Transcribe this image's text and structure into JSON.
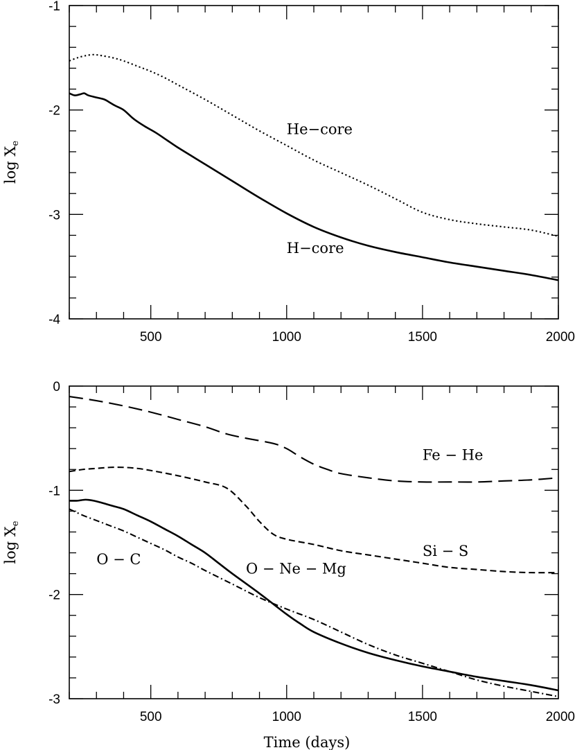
{
  "chart_data": [
    {
      "type": "line",
      "xlabel": "",
      "ylabel": "log X",
      "ylabel_sub": "e",
      "xlim": [
        200,
        2000
      ],
      "ylim": [
        -4,
        -1
      ],
      "xticks": [
        500,
        1000,
        1500,
        2000
      ],
      "yticks": [
        -4,
        -3,
        -2,
        -1
      ],
      "xtick_labels": [
        "500",
        "1000",
        "1500",
        "2000"
      ],
      "ytick_labels": [
        "-4",
        "-3",
        "-2",
        "-1"
      ],
      "x_minor_step": 100,
      "y_minor_step": 0.2,
      "grid": false,
      "annotations": [
        {
          "text": "He−core",
          "x": 1000,
          "y": -2.23
        },
        {
          "text": "H−core",
          "x": 1000,
          "y": -3.37
        }
      ],
      "series": [
        {
          "style": "dotted",
          "x": [
            200,
            230,
            260,
            290,
            320,
            360,
            400,
            450,
            500,
            550,
            600,
            700,
            800,
            900,
            1000,
            1100,
            1200,
            1300,
            1400,
            1500,
            1600,
            1700,
            1800,
            1900,
            2000
          ],
          "y": [
            -1.53,
            -1.5,
            -1.48,
            -1.47,
            -1.48,
            -1.5,
            -1.53,
            -1.58,
            -1.63,
            -1.69,
            -1.76,
            -1.9,
            -2.05,
            -2.2,
            -2.34,
            -2.48,
            -2.6,
            -2.72,
            -2.85,
            -2.98,
            -3.05,
            -3.09,
            -3.12,
            -3.15,
            -3.21
          ]
        },
        {
          "style": "solid",
          "x": [
            200,
            220,
            240,
            255,
            270,
            300,
            330,
            350,
            370,
            400,
            430,
            450,
            480,
            520,
            560,
            600,
            700,
            800,
            900,
            1000,
            1100,
            1200,
            1300,
            1400,
            1500,
            1600,
            1700,
            1800,
            1900,
            2000
          ],
          "y": [
            -1.84,
            -1.86,
            -1.85,
            -1.84,
            -1.86,
            -1.88,
            -1.9,
            -1.93,
            -1.96,
            -2.0,
            -2.07,
            -2.11,
            -2.16,
            -2.22,
            -2.29,
            -2.36,
            -2.52,
            -2.68,
            -2.84,
            -2.99,
            -3.12,
            -3.22,
            -3.3,
            -3.36,
            -3.41,
            -3.46,
            -3.5,
            -3.54,
            -3.58,
            -3.63
          ]
        }
      ]
    },
    {
      "type": "line",
      "xlabel": "Time (days)",
      "ylabel": "log X",
      "ylabel_sub": "e",
      "xlim": [
        200,
        2000
      ],
      "ylim": [
        -3,
        0
      ],
      "xticks": [
        500,
        1000,
        1500,
        2000
      ],
      "yticks": [
        -3,
        -2,
        -1,
        0
      ],
      "xtick_labels": [
        "500",
        "1000",
        "1500",
        "2000"
      ],
      "ytick_labels": [
        "-3",
        "-2",
        "-1",
        "0"
      ],
      "x_minor_step": 100,
      "y_minor_step": 0.2,
      "grid": false,
      "annotations": [
        {
          "text": "Fe − He",
          "x": 1500,
          "y": -0.71
        },
        {
          "text": "Si − S",
          "x": 1500,
          "y": -1.63
        },
        {
          "text": "O − C",
          "x": 300,
          "y": -1.71
        },
        {
          "text": "O − Ne − Mg",
          "x": 850,
          "y": -1.8
        }
      ],
      "series": [
        {
          "style": "long-dashed",
          "x": [
            200,
            300,
            400,
            500,
            600,
            700,
            780,
            850,
            950,
            1000,
            1050,
            1100,
            1150,
            1200,
            1300,
            1400,
            1500,
            1600,
            1700,
            1800,
            1900,
            2000
          ],
          "y": [
            -0.1,
            -0.14,
            -0.19,
            -0.25,
            -0.32,
            -0.39,
            -0.46,
            -0.5,
            -0.55,
            -0.6,
            -0.68,
            -0.75,
            -0.8,
            -0.84,
            -0.88,
            -0.91,
            -0.92,
            -0.92,
            -0.92,
            -0.91,
            -0.9,
            -0.88
          ]
        },
        {
          "style": "short-dashed",
          "x": [
            200,
            250,
            300,
            350,
            400,
            450,
            500,
            600,
            700,
            780,
            850,
            900,
            950,
            1000,
            1100,
            1200,
            1300,
            1400,
            1500,
            1600,
            1700,
            1800,
            1900,
            2000
          ],
          "y": [
            -0.82,
            -0.8,
            -0.79,
            -0.78,
            -0.78,
            -0.79,
            -0.81,
            -0.86,
            -0.92,
            -0.98,
            -1.15,
            -1.3,
            -1.42,
            -1.47,
            -1.52,
            -1.58,
            -1.62,
            -1.66,
            -1.7,
            -1.74,
            -1.76,
            -1.78,
            -1.79,
            -1.79
          ]
        },
        {
          "style": "solid",
          "x": [
            200,
            230,
            260,
            290,
            320,
            360,
            400,
            450,
            500,
            550,
            600,
            650,
            700,
            750,
            800,
            900,
            1000,
            1050,
            1100,
            1200,
            1300,
            1400,
            1500,
            1600,
            1700,
            1800,
            1900,
            2000
          ],
          "y": [
            -1.1,
            -1.1,
            -1.09,
            -1.1,
            -1.12,
            -1.15,
            -1.18,
            -1.24,
            -1.3,
            -1.37,
            -1.44,
            -1.52,
            -1.6,
            -1.7,
            -1.8,
            -1.99,
            -2.19,
            -2.28,
            -2.36,
            -2.47,
            -2.56,
            -2.63,
            -2.69,
            -2.74,
            -2.79,
            -2.83,
            -2.87,
            -2.92
          ]
        },
        {
          "style": "dash-dot",
          "x": [
            200,
            250,
            300,
            350,
            400,
            450,
            500,
            550,
            600,
            650,
            700,
            800,
            900,
            1000,
            1100,
            1200,
            1300,
            1400,
            1500,
            1600,
            1700,
            1800,
            1900,
            2000
          ],
          "y": [
            -1.18,
            -1.24,
            -1.29,
            -1.34,
            -1.39,
            -1.45,
            -1.51,
            -1.57,
            -1.64,
            -1.7,
            -1.77,
            -1.9,
            -2.03,
            -2.14,
            -2.24,
            -2.36,
            -2.48,
            -2.58,
            -2.66,
            -2.74,
            -2.82,
            -2.88,
            -2.93,
            -2.98
          ]
        }
      ]
    }
  ]
}
